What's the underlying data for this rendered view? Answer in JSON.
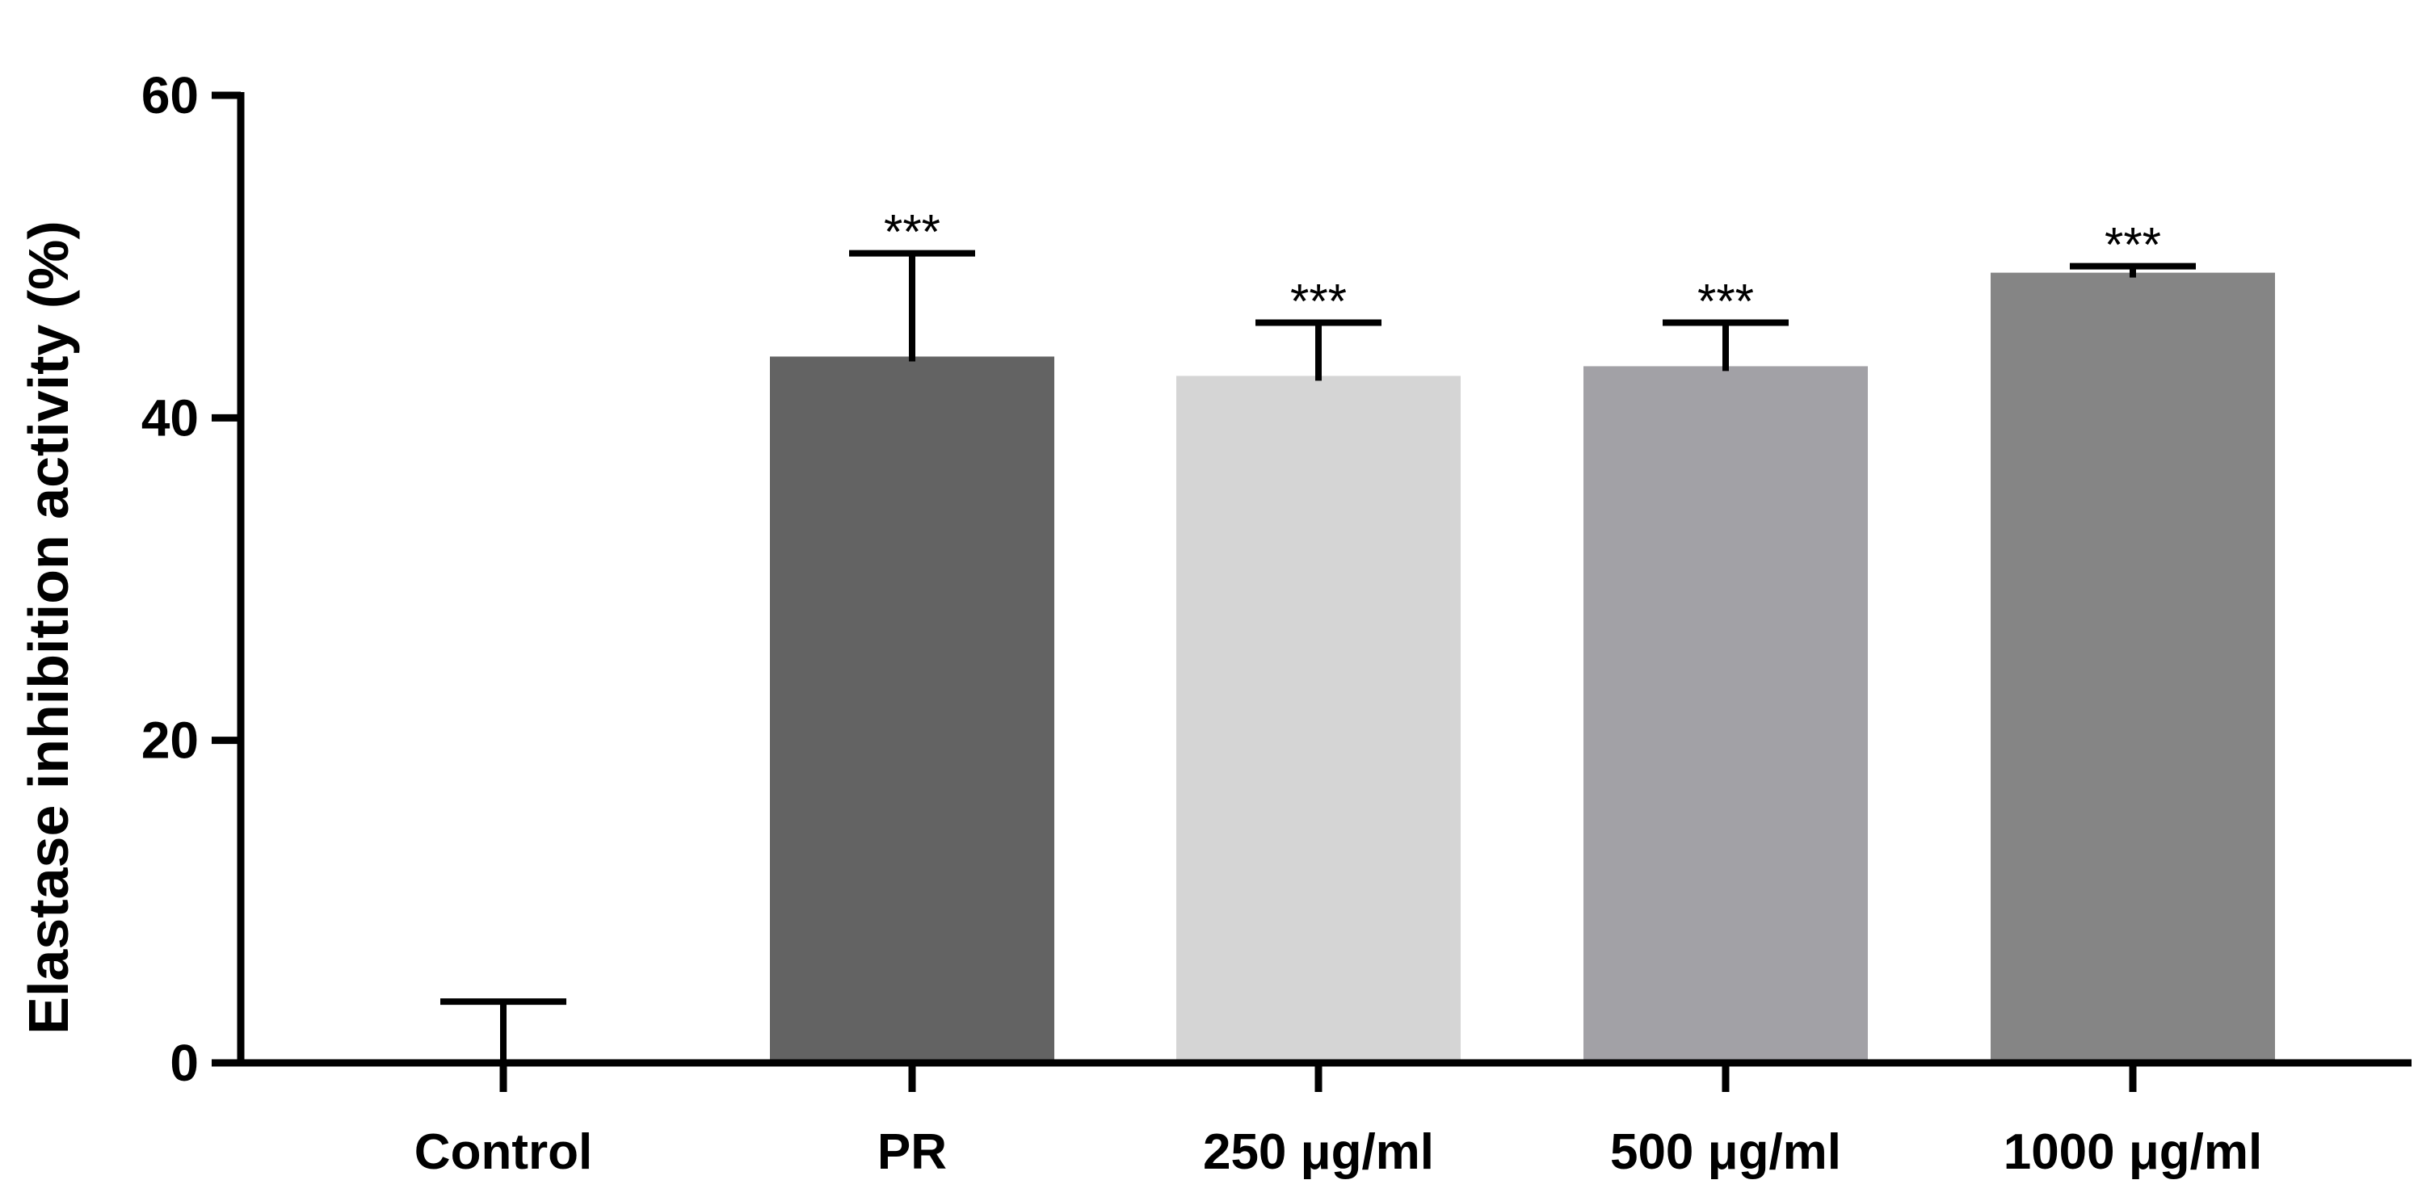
{
  "chart_data": {
    "type": "bar",
    "title": "",
    "xlabel": "",
    "ylabel": "Elastase inhibition activity (%)",
    "ylim": [
      0,
      60
    ],
    "yticks": [
      0,
      20,
      40,
      60
    ],
    "grid": false,
    "categories": [
      "Control",
      "PR",
      "250 μg/ml",
      "500 μg/ml",
      "1000 μg/ml"
    ],
    "values": [
      0,
      43.8,
      42.6,
      43.2,
      49.0
    ],
    "error_upper": [
      3.8,
      6.4,
      3.3,
      2.7,
      0.4
    ],
    "error_lower": [
      0,
      0.3,
      0.3,
      0.3,
      0.3
    ],
    "significance": [
      "",
      "***",
      "***",
      "***",
      "***"
    ],
    "colors": [
      "#ffffff",
      "#636363",
      "#d5d5d5",
      "#a2a1a6",
      "#858585"
    ],
    "axis_color": "#000000"
  }
}
